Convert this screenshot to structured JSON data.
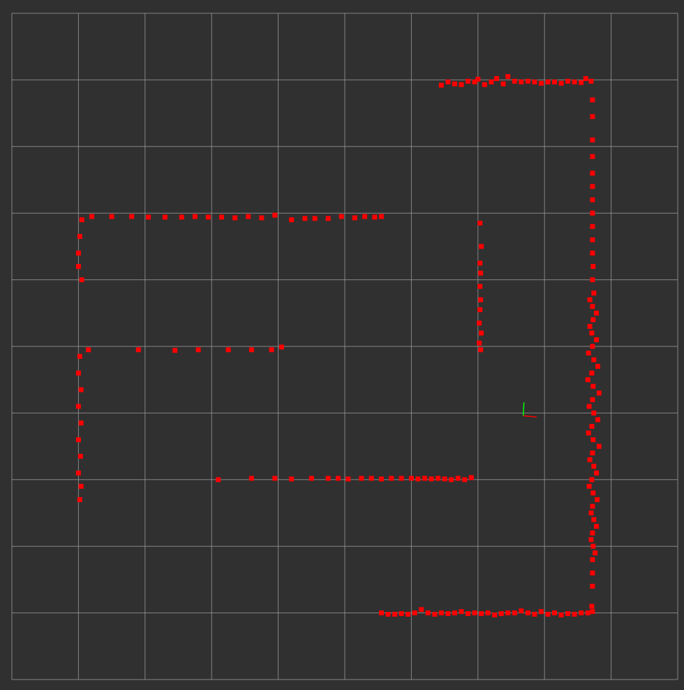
{
  "scene": {
    "background_color": "#303030",
    "grid_color": "#a0a0a0",
    "grid_cell_count": 10,
    "point_color": "#ff0000",
    "axis_x_color": "#ff0000",
    "axis_y_color": "#00ff00"
  },
  "laser_scan": {
    "topic_display": "LaserScan",
    "point_style": "squares",
    "segments": [
      {
        "name": "top-right-wall",
        "points": [
          [
            6.45,
            1.08
          ],
          [
            6.55,
            1.03
          ],
          [
            6.65,
            1.06
          ],
          [
            6.75,
            1.07
          ],
          [
            6.85,
            1.02
          ],
          [
            6.95,
            1.03
          ],
          [
            7.0,
            0.99
          ],
          [
            7.1,
            1.07
          ],
          [
            7.2,
            1.03
          ],
          [
            7.28,
            0.98
          ],
          [
            7.38,
            1.06
          ],
          [
            7.45,
            0.95
          ],
          [
            7.55,
            1.02
          ],
          [
            7.65,
            1.03
          ],
          [
            7.75,
            1.02
          ],
          [
            7.85,
            1.03
          ],
          [
            7.95,
            1.05
          ],
          [
            8.05,
            1.03
          ],
          [
            8.15,
            1.03
          ],
          [
            8.25,
            1.05
          ],
          [
            8.35,
            1.02
          ],
          [
            8.45,
            1.03
          ],
          [
            8.55,
            1.04
          ],
          [
            8.62,
            0.98
          ],
          [
            8.7,
            1.02
          ]
        ]
      },
      {
        "name": "right-wall",
        "points": [
          [
            8.72,
            1.3
          ],
          [
            8.72,
            1.55
          ],
          [
            8.72,
            1.9
          ],
          [
            8.72,
            2.15
          ],
          [
            8.72,
            2.4
          ],
          [
            8.72,
            2.6
          ],
          [
            8.72,
            2.8
          ],
          [
            8.72,
            3.0
          ],
          [
            8.72,
            3.2
          ],
          [
            8.72,
            3.4
          ],
          [
            8.72,
            3.6
          ],
          [
            8.73,
            3.8
          ],
          [
            8.72,
            4.0
          ],
          [
            8.74,
            4.2
          ],
          [
            8.72,
            4.4
          ],
          [
            8.73,
            4.6
          ],
          [
            8.71,
            4.8
          ],
          [
            8.72,
            5.0
          ],
          [
            8.74,
            5.2
          ],
          [
            8.71,
            5.4
          ],
          [
            8.73,
            5.6
          ],
          [
            8.72,
            5.8
          ],
          [
            8.74,
            6.0
          ],
          [
            8.71,
            6.2
          ],
          [
            8.73,
            6.4
          ],
          [
            8.72,
            6.6
          ],
          [
            8.74,
            6.8
          ],
          [
            8.71,
            7.0
          ],
          [
            8.73,
            7.2
          ],
          [
            8.72,
            7.4
          ],
          [
            8.74,
            7.6
          ],
          [
            8.72,
            7.8
          ],
          [
            8.73,
            8.0
          ],
          [
            8.72,
            8.2
          ],
          [
            8.72,
            8.4
          ],
          [
            8.72,
            8.6
          ],
          [
            8.71,
            8.9
          ]
        ]
      },
      {
        "name": "right-wall-dense",
        "points": [
          [
            8.68,
            4.3
          ],
          [
            8.78,
            4.5
          ],
          [
            8.68,
            4.7
          ],
          [
            8.78,
            4.9
          ],
          [
            8.66,
            5.1
          ],
          [
            8.8,
            5.3
          ],
          [
            8.65,
            5.5
          ],
          [
            8.82,
            5.7
          ],
          [
            8.67,
            5.9
          ],
          [
            8.8,
            6.1
          ],
          [
            8.66,
            6.3
          ],
          [
            8.82,
            6.5
          ],
          [
            8.68,
            6.7
          ],
          [
            8.78,
            6.9
          ],
          [
            8.67,
            7.1
          ],
          [
            8.79,
            7.3
          ],
          [
            8.7,
            7.5
          ],
          [
            8.78,
            7.7
          ],
          [
            8.7,
            7.9
          ],
          [
            8.76,
            8.1
          ]
        ]
      },
      {
        "name": "bottom-wall",
        "points": [
          [
            5.55,
            9.0
          ],
          [
            5.65,
            9.02
          ],
          [
            5.75,
            9.02
          ],
          [
            5.85,
            9.01
          ],
          [
            5.95,
            9.02
          ],
          [
            6.05,
            9.0
          ],
          [
            6.15,
            8.95
          ],
          [
            6.25,
            9.0
          ],
          [
            6.35,
            9.02
          ],
          [
            6.45,
            9.0
          ],
          [
            6.55,
            9.01
          ],
          [
            6.65,
            9.0
          ],
          [
            6.75,
            8.98
          ],
          [
            6.85,
            9.01
          ],
          [
            6.95,
            9.0
          ],
          [
            7.05,
            9.01
          ],
          [
            7.15,
            9.0
          ],
          [
            7.25,
            9.03
          ],
          [
            7.35,
            9.01
          ],
          [
            7.45,
            9.0
          ],
          [
            7.55,
            9.0
          ],
          [
            7.65,
            8.97
          ],
          [
            7.75,
            9.0
          ],
          [
            7.85,
            9.02
          ],
          [
            7.95,
            8.98
          ],
          [
            8.05,
            9.02
          ],
          [
            8.15,
            9.0
          ],
          [
            8.25,
            9.03
          ],
          [
            8.35,
            9.01
          ],
          [
            8.45,
            9.02
          ],
          [
            8.55,
            9.0
          ],
          [
            8.65,
            9.0
          ],
          [
            8.72,
            8.98
          ]
        ]
      },
      {
        "name": "inner-bottom-wall",
        "points": [
          [
            3.1,
            7.0
          ],
          [
            3.6,
            6.98
          ],
          [
            3.95,
            6.98
          ],
          [
            4.2,
            6.99
          ],
          [
            4.5,
            6.98
          ],
          [
            4.75,
            6.98
          ],
          [
            4.9,
            6.98
          ],
          [
            5.05,
            6.99
          ],
          [
            5.25,
            6.98
          ],
          [
            5.4,
            6.98
          ],
          [
            5.55,
            6.99
          ],
          [
            5.7,
            6.98
          ],
          [
            5.85,
            6.98
          ],
          [
            6.0,
            6.98
          ],
          [
            6.1,
            6.99
          ],
          [
            6.2,
            6.98
          ],
          [
            6.3,
            6.99
          ],
          [
            6.4,
            6.98
          ],
          [
            6.5,
            6.99
          ],
          [
            6.6,
            7.0
          ],
          [
            6.7,
            6.98
          ],
          [
            6.8,
            7.0
          ],
          [
            6.9,
            6.97
          ]
        ]
      },
      {
        "name": "inner-vertical-wall",
        "points": [
          [
            7.03,
            3.15
          ],
          [
            7.05,
            3.5
          ],
          [
            7.03,
            3.75
          ],
          [
            7.04,
            3.9
          ],
          [
            7.03,
            4.1
          ],
          [
            7.04,
            4.3
          ],
          [
            7.03,
            4.45
          ],
          [
            7.02,
            4.65
          ],
          [
            7.05,
            4.8
          ],
          [
            7.02,
            4.95
          ],
          [
            7.04,
            5.05
          ]
        ]
      },
      {
        "name": "upper-left-wall",
        "points": [
          [
            1.2,
            3.05
          ],
          [
            1.5,
            3.05
          ],
          [
            1.8,
            3.05
          ],
          [
            2.05,
            3.06
          ],
          [
            2.3,
            3.06
          ],
          [
            2.55,
            3.06
          ],
          [
            2.75,
            3.05
          ],
          [
            2.95,
            3.06
          ],
          [
            3.15,
            3.06
          ],
          [
            3.35,
            3.07
          ],
          [
            3.55,
            3.05
          ],
          [
            3.75,
            3.07
          ],
          [
            3.95,
            3.03
          ],
          [
            4.2,
            3.1
          ],
          [
            4.4,
            3.08
          ],
          [
            4.55,
            3.08
          ],
          [
            4.75,
            3.08
          ],
          [
            4.95,
            3.05
          ],
          [
            5.15,
            3.07
          ],
          [
            5.3,
            3.05
          ],
          [
            5.45,
            3.06
          ],
          [
            5.55,
            3.05
          ]
        ]
      },
      {
        "name": "upper-left-vertical",
        "points": [
          [
            1.05,
            3.1
          ],
          [
            1.02,
            3.35
          ],
          [
            1.0,
            3.6
          ],
          [
            1.0,
            3.8
          ],
          [
            1.05,
            4.0
          ]
        ]
      },
      {
        "name": "middle-left-wall",
        "points": [
          [
            1.15,
            5.05
          ],
          [
            1.9,
            5.05
          ],
          [
            2.45,
            5.06
          ],
          [
            2.8,
            5.05
          ],
          [
            3.25,
            5.05
          ],
          [
            3.6,
            5.05
          ],
          [
            3.9,
            5.05
          ],
          [
            4.05,
            5.01
          ]
        ]
      },
      {
        "name": "lower-left-vertical",
        "points": [
          [
            1.02,
            5.15
          ],
          [
            1.0,
            5.4
          ],
          [
            1.04,
            5.65
          ],
          [
            1.0,
            5.9
          ],
          [
            1.04,
            6.15
          ],
          [
            1.0,
            6.4
          ],
          [
            1.03,
            6.65
          ],
          [
            1.0,
            6.9
          ],
          [
            1.04,
            7.1
          ],
          [
            1.02,
            7.3
          ]
        ]
      }
    ]
  },
  "robot_frame": {
    "position": [
      7.68,
      6.04
    ],
    "axis_length": 0.2
  }
}
